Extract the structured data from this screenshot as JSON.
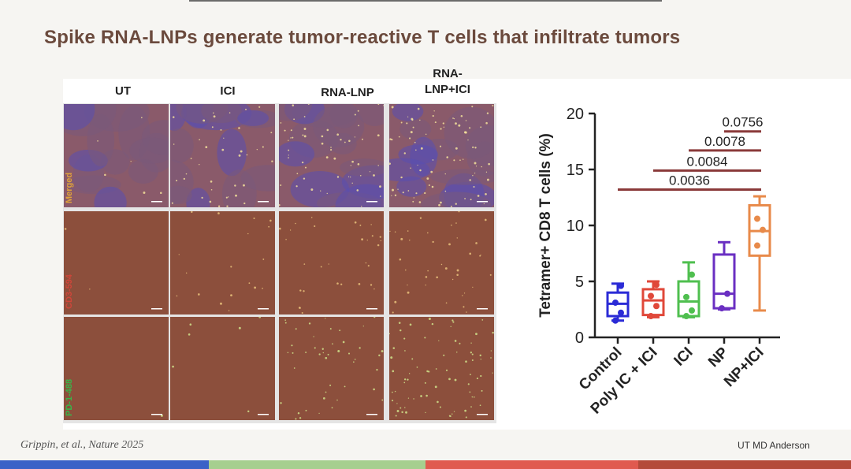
{
  "slide": {
    "title": "Spike RNA-LNPs generate tumor-reactive T cells that infiltrate tumors",
    "columns": [
      "UT",
      "ICI",
      "RNA-LNP",
      "RNA-\nLNP+ICI"
    ],
    "rows": [
      {
        "label": "Merged",
        "color": "#e0a23a"
      },
      {
        "label": "CD3-594",
        "color": "#d0463a"
      },
      {
        "label": "PD-1-488",
        "color": "#39b54a"
      }
    ],
    "citation": "Grippin, et al., Nature 2025",
    "brand": "UT MD Anderson",
    "bottom_bar_colors": [
      "#3a62c7",
      "#a6cf8f",
      "#e05a4f",
      "#b44a3a"
    ]
  },
  "chart_data": {
    "type": "box",
    "ylabel": "Tetramer+ CD8 T cells (%)",
    "ylim": [
      0,
      20
    ],
    "yticks": [
      0,
      5,
      10,
      15,
      20
    ],
    "categories": [
      "Control",
      "Poly IC + ICI",
      "ICI",
      "NP",
      "NP+ICI"
    ],
    "colors": [
      "#2b2bd6",
      "#e0483a",
      "#4fbf4f",
      "#6a2fc2",
      "#e88a4a"
    ],
    "boxes": [
      {
        "min": 1.5,
        "q1": 1.9,
        "median": 3.0,
        "q3": 4.0,
        "max": 4.8,
        "points": [
          1.5,
          2.2,
          3.1,
          4.6
        ]
      },
      {
        "min": 1.8,
        "q1": 2.0,
        "median": 3.3,
        "q3": 4.3,
        "max": 5.0,
        "points": [
          1.9,
          2.8,
          3.7,
          4.7
        ]
      },
      {
        "min": 1.8,
        "q1": 1.9,
        "median": 3.2,
        "q3": 5.0,
        "max": 6.7,
        "points": [
          1.9,
          2.4,
          3.6,
          5.6
        ]
      },
      {
        "min": 2.5,
        "q1": 2.6,
        "median": 3.9,
        "q3": 7.4,
        "max": 8.5,
        "points": [
          2.6,
          3.9
        ]
      },
      {
        "min": 2.4,
        "q1": 7.3,
        "median": 9.5,
        "q3": 11.8,
        "max": 12.6,
        "points": [
          8.2,
          9.6,
          10.6
        ]
      }
    ],
    "comparisons": [
      {
        "from": 0,
        "to": 4,
        "y": 13.2,
        "label": "0.0036"
      },
      {
        "from": 1,
        "to": 4,
        "y": 14.9,
        "label": "0.0084"
      },
      {
        "from": 2,
        "to": 4,
        "y": 16.7,
        "label": "0.0078"
      },
      {
        "from": 3,
        "to": 4,
        "y": 18.4,
        "label": "0.0756"
      }
    ],
    "bracket_color": "#8a3a3a"
  }
}
